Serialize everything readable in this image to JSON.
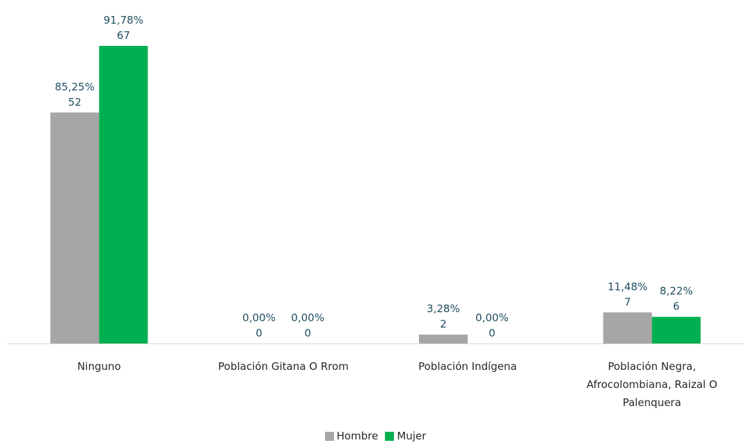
{
  "chart_data": {
    "type": "bar",
    "categories": [
      [
        "Ninguno"
      ],
      [
        "Población Gitana O Rrom"
      ],
      [
        "Población Indígena"
      ],
      [
        "Población Negra,",
        "Afrocolombiana, Raizal O",
        "Palenquera"
      ]
    ],
    "series": [
      {
        "name": "Hombre",
        "color": "#a6a6a6",
        "values": [
          52,
          0,
          2,
          7
        ],
        "percent_labels": [
          "85,25%",
          "0,00%",
          "3,28%",
          "11,48%"
        ]
      },
      {
        "name": "Mujer",
        "color": "#00b050",
        "values": [
          67,
          0,
          0,
          6
        ],
        "percent_labels": [
          "91,78%",
          "0,00%",
          "0,00%",
          "8,22%"
        ]
      }
    ],
    "ylim": [
      0,
      67
    ],
    "grid": false,
    "legend_position": "bottom",
    "label_color": "#1f4e5f",
    "axis_color": "#d9d9d9"
  }
}
